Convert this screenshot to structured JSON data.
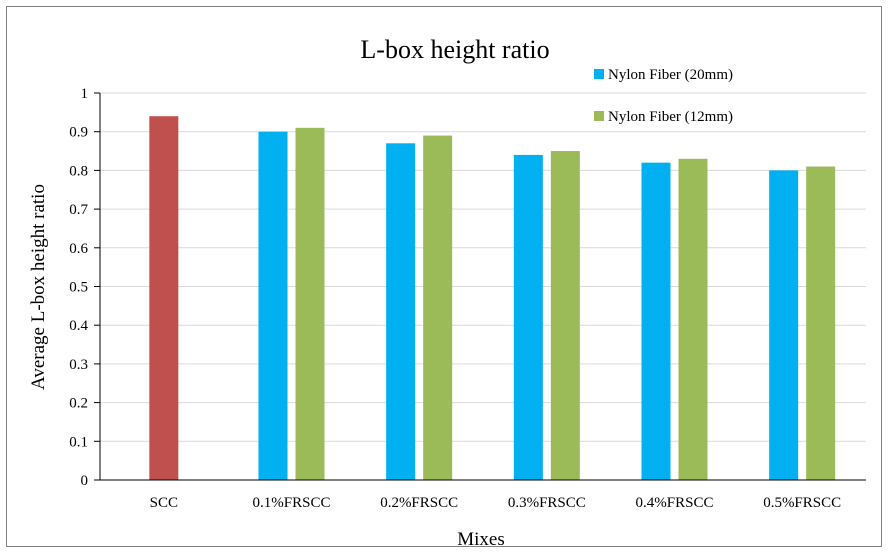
{
  "chart_data": {
    "type": "bar",
    "title": "L-box height ratio",
    "xlabel": "Mixes",
    "ylabel": "Average L-box height ratio",
    "categories": [
      "SCC",
      "0.1%FRSCC",
      "0.2%FRSCC",
      "0.3%FRSCC",
      "0.4%FRSCC",
      "0.5%FRSCC"
    ],
    "reference": {
      "category": "SCC",
      "value": 0.94,
      "color": "#c0504d"
    },
    "series": [
      {
        "name": "Nylon Fiber (20mm)",
        "color": "#00b0f0",
        "values": [
          null,
          0.9,
          0.87,
          0.84,
          0.82,
          0.8
        ]
      },
      {
        "name": "Nylon Fiber (12mm)",
        "color": "#9bbb59",
        "values": [
          null,
          0.91,
          0.89,
          0.85,
          0.83,
          0.81
        ]
      }
    ],
    "ylim": [
      0,
      1
    ],
    "yticks": [
      "0",
      "0.1",
      "0.2",
      "0.3",
      "0.4",
      "0.5",
      "0.6",
      "0.7",
      "0.8",
      "0.9",
      "1"
    ],
    "grid": true,
    "legend_position": "top-right"
  }
}
